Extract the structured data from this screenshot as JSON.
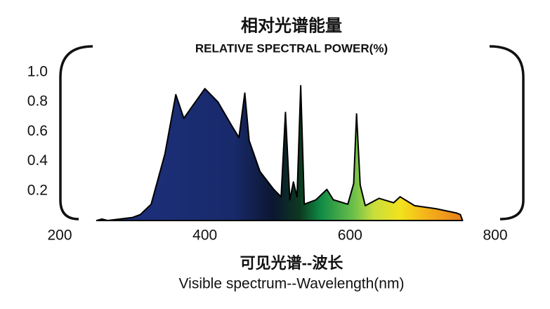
{
  "chart_data": {
    "type": "area",
    "title": "相对光谱能量",
    "subtitle": "RELATIVE SPECTRAL POWER(%)",
    "xlabel": "可见光谱--波长",
    "xlabel_sub": "Visible spectrum--Wavelength(nm)",
    "x": [
      251,
      258,
      266,
      300,
      311,
      326,
      345,
      360,
      371,
      384,
      400,
      418,
      437,
      447,
      455,
      461,
      476,
      495,
      505,
      511,
      517,
      522,
      527,
      532,
      537,
      553,
      568,
      577,
      597,
      605,
      609,
      614,
      621,
      640,
      660,
      669,
      689,
      718,
      747,
      752,
      755
    ],
    "values": [
      0,
      0.01,
      0,
      0.02,
      0.04,
      0.11,
      0.45,
      0.85,
      0.69,
      0.78,
      0.89,
      0.8,
      0.64,
      0.56,
      0.86,
      0.54,
      0.33,
      0.21,
      0.16,
      0.73,
      0.14,
      0.26,
      0.16,
      0.91,
      0.11,
      0.14,
      0.21,
      0.14,
      0.11,
      0.25,
      0.72,
      0.24,
      0.1,
      0.15,
      0.12,
      0.16,
      0.1,
      0.08,
      0.05,
      0.04,
      0
    ],
    "color": "#000000",
    "xlim": [
      200,
      800
    ],
    "xticks": [
      200,
      400,
      600,
      800
    ],
    "ylim": [
      0,
      1.0
    ],
    "yticks": [
      0.2,
      0.4,
      0.6,
      0.8,
      {
        "value": 1,
        "label": "1.0"
      }
    ]
  }
}
